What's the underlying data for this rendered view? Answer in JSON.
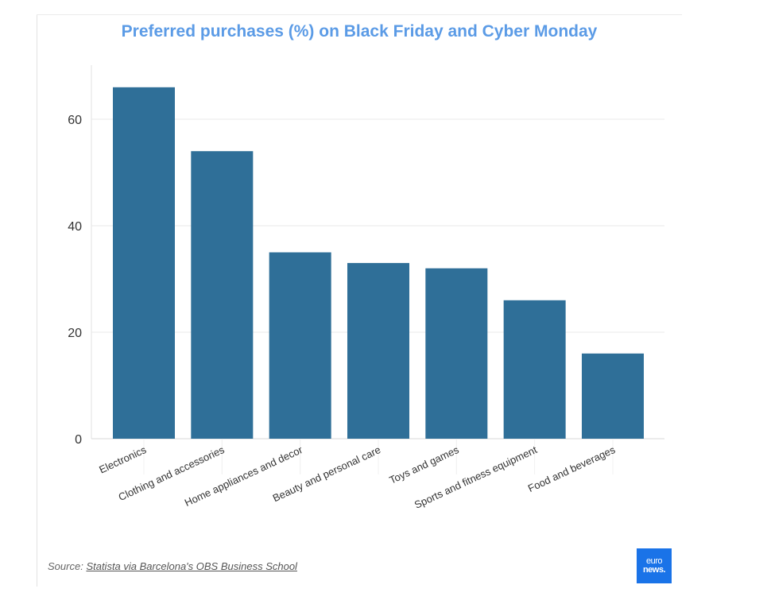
{
  "chart_data": {
    "type": "bar",
    "title": "Preferred purchases (%) on Black Friday and Cyber Monday",
    "categories": [
      "Electronics",
      "Clothing and accessories",
      "Home appliances and decor",
      "Beauty and personal care",
      "Toys and games",
      "Sports and fitness equipment",
      "Food and beverages"
    ],
    "values": [
      66,
      54,
      35,
      33,
      32,
      26,
      16
    ],
    "ylim": [
      0,
      70
    ],
    "yticks": [
      0,
      20,
      40,
      60
    ],
    "xlabel": "",
    "ylabel": "",
    "grid": true,
    "colors": {
      "bar": "#2f6f98",
      "title": "#5b9be6"
    }
  },
  "source": {
    "prefix": "Source:",
    "link_text": "Statista via Barcelona's OBS Business School"
  },
  "logo": {
    "line1": "euro",
    "line2": "news."
  }
}
